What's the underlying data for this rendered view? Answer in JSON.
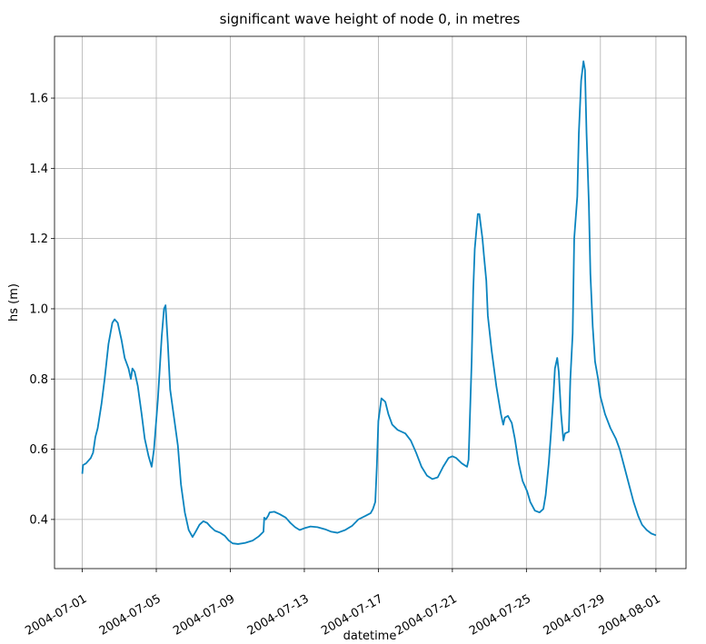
{
  "chart_data": {
    "type": "line",
    "title": "significant wave height of node 0, in metres",
    "xlabel": "datetime",
    "ylabel": "hs (m)",
    "color": "#0a84bf",
    "grid": true,
    "xlim": [
      "2004-06-29 12:00",
      "2004-08-02 15:00"
    ],
    "xticks": [
      "2004-07-01",
      "2004-07-05",
      "2004-07-09",
      "2004-07-13",
      "2004-07-17",
      "2004-07-21",
      "2004-07-25",
      "2004-07-29",
      "2004-08-01"
    ],
    "ylim": [
      0.26,
      1.776
    ],
    "yticks": [
      0.4,
      0.6,
      0.8,
      {
        "value": 1,
        "label": "1.0"
      },
      1.2,
      1.4,
      1.6
    ],
    "x": [
      "2004-07-01 00:00",
      "2004-07-01 01:00",
      "2004-07-01 05:00",
      "2004-07-01 11:00",
      "2004-07-01 14:00",
      "2004-07-01 17:00",
      "2004-07-01 20:00",
      "2004-07-02 01:00",
      "2004-07-02 05:00",
      "2004-07-02 10:00",
      "2004-07-02 15:00",
      "2004-07-02 18:00",
      "2004-07-02 22:00",
      "2004-07-03 03:00",
      "2004-07-03 07:00",
      "2004-07-03 12:00",
      "2004-07-03 15:00",
      "2004-07-03 17:00",
      "2004-07-03 20:00",
      "2004-07-04 00:00",
      "2004-07-04 05:00",
      "2004-07-04 09:00",
      "2004-07-04 14:00",
      "2004-07-04 18:00",
      "2004-07-04 21:00",
      "2004-07-05 02:00",
      "2004-07-05 07:00",
      "2004-07-05 10:00",
      "2004-07-05 12:00",
      "2004-07-05 15:00",
      "2004-07-05 18:00",
      "2004-07-05 23:00",
      "2004-07-06 04:00",
      "2004-07-06 08:00",
      "2004-07-06 13:00",
      "2004-07-06 18:00",
      "2004-07-06 23:00",
      "2004-07-07 03:00",
      "2004-07-07 08:00",
      "2004-07-07 13:00",
      "2004-07-07 18:00",
      "2004-07-07 22:00",
      "2004-07-08 04:00",
      "2004-07-08 11:00",
      "2004-07-08 17:00",
      "2004-07-08 22:00",
      "2004-07-09 03:00",
      "2004-07-09 10:00",
      "2004-07-09 19:00",
      "2004-07-10 05:00",
      "2004-07-10 13:00",
      "2004-07-10 19:00",
      "2004-07-10 20:00",
      "2004-07-10 22:00",
      "2004-07-11 01:00",
      "2004-07-11 03:00",
      "2004-07-11 09:00",
      "2004-07-11 16:00",
      "2004-07-12 00:00",
      "2004-07-12 06:00",
      "2004-07-12 12:00",
      "2004-07-12 18:00",
      "2004-07-13 00:00",
      "2004-07-13 08:00",
      "2004-07-13 17:00",
      "2004-07-14 03:00",
      "2004-07-14 11:00",
      "2004-07-14 19:00",
      "2004-07-15 05:00",
      "2004-07-15 14:00",
      "2004-07-15 22:00",
      "2004-07-16 07:00",
      "2004-07-16 14:00",
      "2004-07-16 17:00",
      "2004-07-16 20:00",
      "2004-07-16 22:00",
      "2004-07-17 00:00",
      "2004-07-17 04:00",
      "2004-07-17 09:00",
      "2004-07-17 13:00",
      "2004-07-17 18:00",
      "2004-07-18 01:00",
      "2004-07-18 11:00",
      "2004-07-18 18:00",
      "2004-07-19 01:00",
      "2004-07-19 08:00",
      "2004-07-19 15:00",
      "2004-07-19 22:00",
      "2004-07-20 05:00",
      "2004-07-20 12:00",
      "2004-07-20 19:00",
      "2004-07-21 00:00",
      "2004-07-21 05:00",
      "2004-07-21 12:00",
      "2004-07-21 19:00",
      "2004-07-21 21:00",
      "2004-07-22 01:00",
      "2004-07-22 03:00",
      "2004-07-22 05:00",
      "2004-07-22 09:00",
      "2004-07-22 11:00",
      "2004-07-22 15:00",
      "2004-07-22 17:00",
      "2004-07-22 20:00",
      "2004-07-22 22:00",
      "2004-07-23 03:00",
      "2004-07-23 09:00",
      "2004-07-23 15:00",
      "2004-07-23 18:00",
      "2004-07-23 20:00",
      "2004-07-24 00:00",
      "2004-07-24 05:00",
      "2004-07-24 09:00",
      "2004-07-24 14:00",
      "2004-07-24 19:00",
      "2004-07-25 01:00",
      "2004-07-25 05:00",
      "2004-07-25 11:00",
      "2004-07-25 17:00",
      "2004-07-25 22:00",
      "2004-07-26 01:00",
      "2004-07-26 05:00",
      "2004-07-26 08:00",
      "2004-07-26 11:00",
      "2004-07-26 13:00",
      "2004-07-26 16:00",
      "2004-07-26 18:00",
      "2004-07-26 21:00",
      "2004-07-27 00:00",
      "2004-07-27 02:00",
      "2004-07-27 07:00",
      "2004-07-27 09:00",
      "2004-07-27 12:00",
      "2004-07-27 14:00",
      "2004-07-27 18:00",
      "2004-07-27 20:00",
      "2004-07-27 23:00",
      "2004-07-28 02:00",
      "2004-07-28 04:00",
      "2004-07-28 06:00",
      "2004-07-28 09:00",
      "2004-07-28 11:00",
      "2004-07-28 14:00",
      "2004-07-28 17:00",
      "2004-07-28 21:00",
      "2004-07-29 00:00",
      "2004-07-29 06:00",
      "2004-07-29 13:00",
      "2004-07-29 20:00",
      "2004-07-30 01:00",
      "2004-07-30 07:00",
      "2004-07-30 13:00",
      "2004-07-30 19:00",
      "2004-07-31 01:00",
      "2004-07-31 06:00",
      "2004-07-31 12:00",
      "2004-07-31 18:00",
      "2004-08-01 00:00"
    ],
    "values": [
      0.53,
      0.555,
      0.56,
      0.575,
      0.59,
      0.635,
      0.66,
      0.73,
      0.8,
      0.9,
      0.96,
      0.97,
      0.96,
      0.91,
      0.86,
      0.83,
      0.8,
      0.83,
      0.82,
      0.78,
      0.7,
      0.63,
      0.58,
      0.55,
      0.6,
      0.74,
      0.92,
      1.0,
      1.01,
      0.9,
      0.77,
      0.69,
      0.61,
      0.5,
      0.42,
      0.37,
      0.35,
      0.365,
      0.385,
      0.395,
      0.39,
      0.38,
      0.368,
      0.362,
      0.353,
      0.34,
      0.332,
      0.33,
      0.333,
      0.34,
      0.352,
      0.365,
      0.405,
      0.4,
      0.41,
      0.42,
      0.422,
      0.415,
      0.405,
      0.39,
      0.378,
      0.37,
      0.375,
      0.38,
      0.378,
      0.372,
      0.365,
      0.362,
      0.37,
      0.382,
      0.4,
      0.41,
      0.418,
      0.43,
      0.45,
      0.55,
      0.68,
      0.745,
      0.735,
      0.7,
      0.67,
      0.655,
      0.645,
      0.625,
      0.59,
      0.55,
      0.525,
      0.515,
      0.52,
      0.55,
      0.575,
      0.58,
      0.575,
      0.56,
      0.55,
      0.57,
      0.85,
      1.05,
      1.17,
      1.27,
      1.27,
      1.2,
      1.15,
      1.08,
      0.98,
      0.88,
      0.78,
      0.7,
      0.67,
      0.69,
      0.695,
      0.675,
      0.63,
      0.56,
      0.51,
      0.48,
      0.45,
      0.425,
      0.42,
      0.43,
      0.47,
      0.56,
      0.65,
      0.75,
      0.83,
      0.86,
      0.82,
      0.7,
      0.625,
      0.645,
      0.65,
      0.8,
      0.93,
      1.2,
      1.32,
      1.5,
      1.65,
      1.705,
      1.68,
      1.5,
      1.3,
      1.1,
      0.95,
      0.85,
      0.8,
      0.75,
      0.7,
      0.66,
      0.63,
      0.6,
      0.55,
      0.5,
      0.45,
      0.41,
      0.385,
      0.37,
      0.36,
      0.355
    ]
  }
}
